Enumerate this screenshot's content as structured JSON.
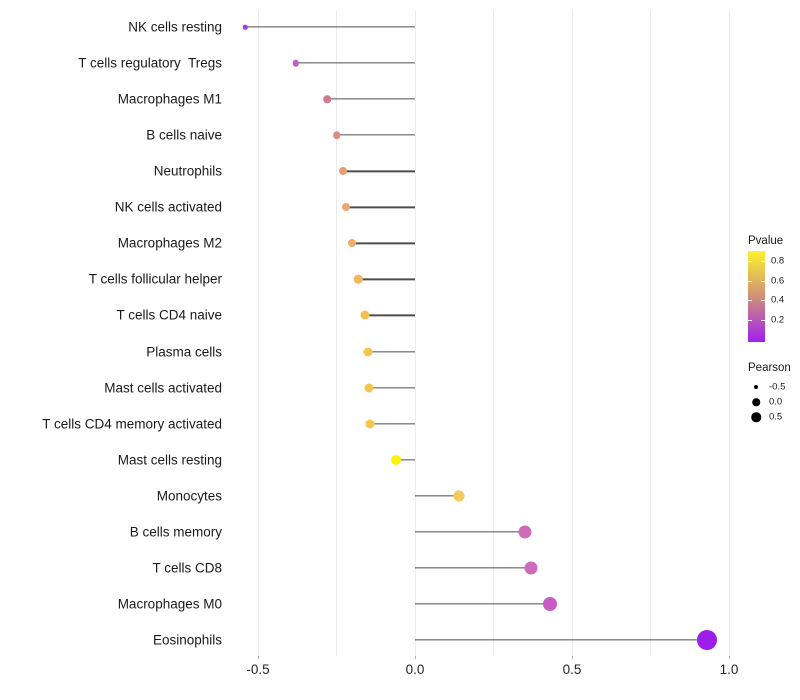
{
  "chart_data": {
    "type": "lollipop",
    "title": "",
    "xlabel": "",
    "ylabel": "",
    "xlim": [
      -0.62,
      1.07
    ],
    "grid": "vertical-only",
    "gridline_values": [
      -0.5,
      -0.25,
      0,
      0.25,
      0.5,
      0.75,
      1.0
    ],
    "x_axis_ticks": [
      {
        "value": -0.5,
        "label": "-0.5"
      },
      {
        "value": 0.0,
        "label": "0.0"
      },
      {
        "value": 0.5,
        "label": "0.5"
      },
      {
        "value": 1.0,
        "label": "1.0"
      }
    ],
    "categories": [
      "NK cells resting",
      "T cells regulatory  Tregs",
      "Macrophages M1",
      "B cells naive",
      "Neutrophils",
      "NK cells activated",
      "Macrophages M2",
      "T cells follicular helper",
      "T cells CD4 naive",
      "Plasma cells",
      "Mast cells activated",
      "T cells CD4 memory activated",
      "Mast cells resting",
      "Monocytes",
      "B cells memory",
      "T cells CD8",
      "Macrophages M0",
      "Eosinophils"
    ],
    "points": [
      {
        "label": "NK cells resting",
        "pearson": -0.54,
        "pvalue": 0.1,
        "size": 4.5,
        "color": "#A33BD6"
      },
      {
        "label": "T cells regulatory  Tregs",
        "pearson": -0.38,
        "pvalue": 0.3,
        "size": 6.5,
        "color": "#C45FC0"
      },
      {
        "label": "Macrophages M1",
        "pearson": -0.28,
        "pvalue": 0.45,
        "size": 7.5,
        "color": "#D1798F"
      },
      {
        "label": "B cells naive",
        "pearson": -0.25,
        "pvalue": 0.5,
        "size": 7.5,
        "color": "#DD8B80"
      },
      {
        "label": "Neutrophils",
        "pearson": -0.23,
        "pvalue": 0.55,
        "size": 8,
        "color": "#E89D76"
      },
      {
        "label": "NK cells activated",
        "pearson": -0.22,
        "pvalue": 0.58,
        "size": 8,
        "color": "#EDA673"
      },
      {
        "label": "Macrophages M2",
        "pearson": -0.2,
        "pvalue": 0.62,
        "size": 8,
        "color": "#EFAC68"
      },
      {
        "label": "T cells follicular helper",
        "pearson": -0.18,
        "pvalue": 0.66,
        "size": 8.5,
        "color": "#F2B75C"
      },
      {
        "label": "T cells CD4 naive",
        "pearson": -0.16,
        "pvalue": 0.71,
        "size": 9,
        "color": "#F4C150"
      },
      {
        "label": "Plasma cells",
        "pearson": -0.15,
        "pvalue": 0.72,
        "size": 9,
        "color": "#F4C34E"
      },
      {
        "label": "Mast cells activated",
        "pearson": -0.146,
        "pvalue": 0.73,
        "size": 9,
        "color": "#F4C54C"
      },
      {
        "label": "T cells CD4 memory activated",
        "pearson": -0.143,
        "pvalue": 0.74,
        "size": 9,
        "color": "#F4C74A"
      },
      {
        "label": "Mast cells resting",
        "pearson": -0.06,
        "pvalue": 0.95,
        "size": 10,
        "color": "#FAF408"
      },
      {
        "label": "Monocytes",
        "pearson": 0.14,
        "pvalue": 0.72,
        "size": 11,
        "color": "#F2CB5A"
      },
      {
        "label": "B cells memory",
        "pearson": 0.35,
        "pvalue": 0.33,
        "size": 13,
        "color": "#CE6CBA"
      },
      {
        "label": "T cells CD8",
        "pearson": 0.37,
        "pvalue": 0.32,
        "size": 13,
        "color": "#CC6BBE"
      },
      {
        "label": "Macrophages M0",
        "pearson": 0.43,
        "pvalue": 0.28,
        "size": 14,
        "color": "#C85BC4"
      },
      {
        "label": "Eosinophils",
        "pearson": 0.93,
        "pvalue": 0.05,
        "size": 20,
        "color": "#9D1DE8"
      }
    ],
    "legend": {
      "pvalue": {
        "title": "Pvalue",
        "ticks": [
          {
            "value": 0.8,
            "label": "0.8"
          },
          {
            "value": 0.6,
            "label": "0.6"
          },
          {
            "value": 0.4,
            "label": "0.4"
          },
          {
            "value": 0.2,
            "label": "0.2"
          }
        ],
        "gradient_low_color": "#A020F0",
        "gradient_high_color": "#FBF32E"
      },
      "pearson": {
        "title": "Pearson",
        "items": [
          {
            "label": "-0.5",
            "size": 4
          },
          {
            "label": "0.0",
            "size": 7.5
          },
          {
            "label": "0.5",
            "size": 9.5
          }
        ]
      }
    },
    "colors": {
      "stem": "#4d4d4d",
      "gridline": "#ececec",
      "axis_text": "#262626"
    }
  }
}
